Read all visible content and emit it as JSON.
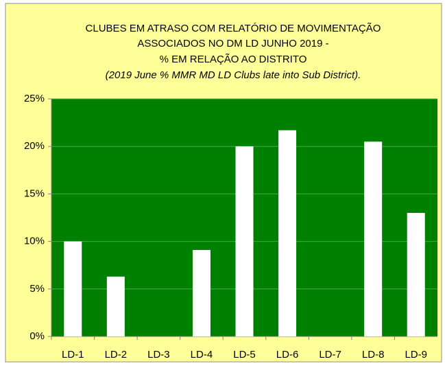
{
  "chart_data": {
    "type": "bar",
    "title": [
      "CLUBES EM ATRASO COM RELATÓRIO DE MOVIMENTAÇÃO",
      "ASSOCIADOS NO DM LD  JUNHO 2019  -",
      "%  EM RELAÇÃO AO DISTRITO",
      "(2019 June % MMR MD LD Clubs late into Sub District)."
    ],
    "categories": [
      "LD-1",
      "LD-2",
      "LD-3",
      "LD-4",
      "LD-5",
      "LD-6",
      "LD-7",
      "LD-8",
      "LD-9"
    ],
    "values": [
      10,
      6.3,
      0,
      9.1,
      20,
      21.7,
      0,
      20.5,
      13
    ],
    "color": "#ffffff",
    "ylim": [
      0,
      25
    ],
    "yticks": [
      {
        "value": 0,
        "label": "0%"
      },
      {
        "value": 5,
        "label": "5%"
      },
      {
        "value": 10,
        "label": "10%"
      },
      {
        "value": 15,
        "label": "15%"
      },
      {
        "value": 20,
        "label": "20%"
      },
      {
        "value": 25,
        "label": "25%"
      }
    ],
    "grid": true
  }
}
